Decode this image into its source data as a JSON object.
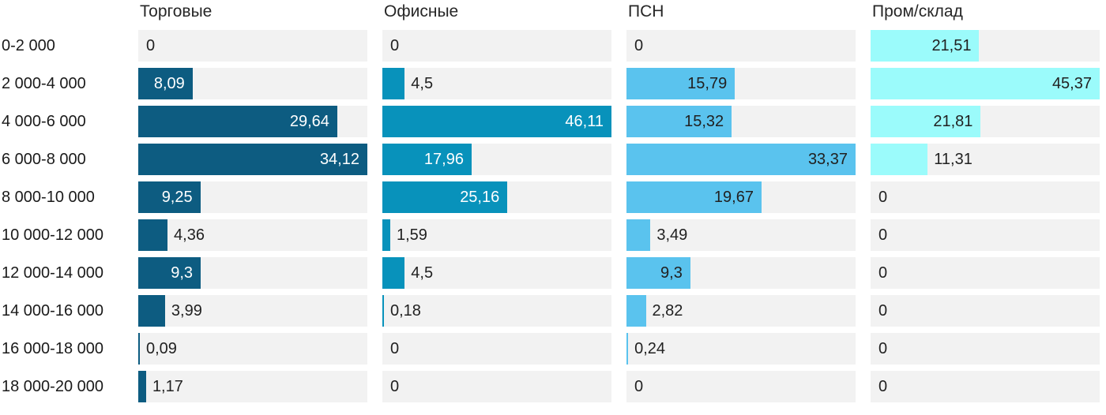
{
  "chart_data": {
    "type": "bar",
    "orientation": "horizontal",
    "title": "",
    "xlabel": "",
    "ylabel": "",
    "grid": "off",
    "legend_position": "none",
    "track_color": "#f2f2f2",
    "outside_label_color": "#212121",
    "scaling_note": "each column is scaled independently: the column max fills the full track width",
    "categories": [
      "0-2 000",
      "2 000-4 000",
      "4 000-6 000",
      "6 000-8 000",
      "8 000-10 000",
      "10 000-12 000",
      "12 000-14 000",
      "14 000-16 000",
      "16 000-18 000",
      "18 000-20 000"
    ],
    "series": [
      {
        "name": "Торговые",
        "bar_color": "#0d5c81",
        "inside_label_color": "#ffffff",
        "axis_max": 34.12,
        "values": [
          0,
          8.09,
          29.64,
          34.12,
          9.25,
          4.36,
          9.3,
          3.99,
          0.09,
          1.17
        ],
        "value_labels": [
          "0",
          "8,09",
          "29,64",
          "34,12",
          "9,25",
          "4,36",
          "9,3",
          "3,99",
          "0,09",
          "1,17"
        ],
        "label_placement": [
          "zero",
          "in",
          "in",
          "in",
          "in",
          "out",
          "in",
          "out",
          "out",
          "out"
        ]
      },
      {
        "name": "Офисные",
        "bar_color": "#0892bb",
        "inside_label_color": "#ffffff",
        "axis_max": 46.11,
        "values": [
          0,
          4.5,
          46.11,
          17.96,
          25.16,
          1.59,
          4.5,
          0.18,
          0,
          0
        ],
        "value_labels": [
          "0",
          "4,5",
          "46,11",
          "17,96",
          "25,16",
          "1,59",
          "4,5",
          "0,18",
          "0",
          "0"
        ],
        "label_placement": [
          "zero",
          "out",
          "in",
          "in",
          "in",
          "out",
          "out",
          "out",
          "zero",
          "zero"
        ]
      },
      {
        "name": "ПСН",
        "bar_color": "#5ac3ee",
        "inside_label_color": "#212121",
        "axis_max": 33.37,
        "values": [
          0,
          15.79,
          15.32,
          33.37,
          19.67,
          3.49,
          9.3,
          2.82,
          0.24,
          0
        ],
        "value_labels": [
          "0",
          "15,79",
          "15,32",
          "33,37",
          "19,67",
          "3,49",
          "9,3",
          "2,82",
          "0,24",
          "0"
        ],
        "label_placement": [
          "zero",
          "in",
          "in",
          "in",
          "in",
          "out",
          "in",
          "out",
          "out",
          "zero"
        ]
      },
      {
        "name": "Пром/склад",
        "bar_color": "#9bfbfb",
        "inside_label_color": "#212121",
        "axis_max": 45.37,
        "values": [
          21.51,
          45.37,
          21.81,
          11.31,
          0,
          0,
          0,
          0,
          0,
          0
        ],
        "value_labels": [
          "21,51",
          "45,37",
          "21,81",
          "11,31",
          "0",
          "0",
          "0",
          "0",
          "0",
          "0"
        ],
        "label_placement": [
          "in",
          "in",
          "in",
          "out",
          "zero",
          "zero",
          "zero",
          "zero",
          "zero",
          "zero"
        ]
      }
    ]
  }
}
